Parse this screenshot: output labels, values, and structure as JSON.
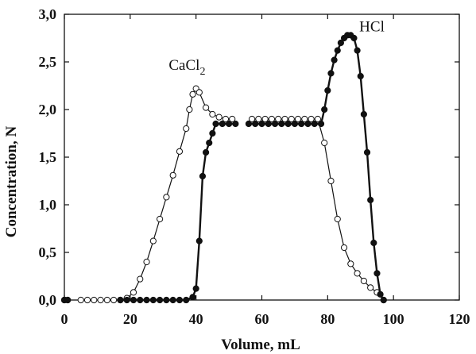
{
  "chart_data": {
    "type": "scatter",
    "xlabel": "Volume, mL",
    "ylabel": "Concentration, N",
    "xlim": [
      0,
      120
    ],
    "ylim": [
      0,
      3.0
    ],
    "x_ticks": [
      "0",
      "20",
      "40",
      "60",
      "80",
      "100",
      "120"
    ],
    "y_ticks": [
      "0,0",
      "0,5",
      "1,0",
      "1,5",
      "2,0",
      "2,5",
      "3,0"
    ],
    "grid": false,
    "annotations": [
      {
        "text_main": "CaCl",
        "text_sub": "2",
        "x": 38,
        "y": 2.4
      },
      {
        "text_main": "HCl",
        "x": 93,
        "y": 2.82
      }
    ],
    "series": [
      {
        "marker": "open-circle",
        "x": [
          0,
          1,
          5,
          7,
          9,
          11,
          13,
          15,
          17,
          19,
          21,
          23,
          25,
          27,
          29,
          31,
          33,
          35,
          37,
          38,
          39,
          40,
          41,
          43,
          45,
          47,
          49,
          51,
          57,
          59,
          61,
          63,
          65,
          67,
          69,
          71,
          73,
          75,
          77,
          79,
          81,
          83,
          85,
          87,
          89,
          91,
          93,
          95,
          97
        ],
        "y": [
          0,
          0,
          0,
          0,
          0,
          0,
          0,
          0,
          0,
          0.02,
          0.08,
          0.22,
          0.4,
          0.62,
          0.85,
          1.08,
          1.31,
          1.56,
          1.8,
          2.0,
          2.16,
          2.22,
          2.18,
          2.02,
          1.95,
          1.92,
          1.9,
          1.9,
          1.9,
          1.9,
          1.9,
          1.9,
          1.9,
          1.9,
          1.9,
          1.9,
          1.9,
          1.9,
          1.9,
          1.65,
          1.25,
          0.85,
          0.55,
          0.38,
          0.28,
          0.2,
          0.13,
          0.08,
          0.0
        ]
      },
      {
        "marker": "filled-circle",
        "x": [
          0,
          1,
          17,
          19,
          21,
          23,
          25,
          27,
          29,
          31,
          33,
          35,
          37,
          39,
          40,
          41,
          42,
          43,
          44,
          45,
          46,
          48,
          50,
          52,
          56,
          58,
          60,
          62,
          64,
          66,
          68,
          70,
          72,
          74,
          76,
          78,
          79,
          80,
          81,
          82,
          83,
          84,
          85,
          86,
          87,
          88,
          89,
          90,
          91,
          92,
          93,
          94,
          95,
          96,
          97
        ],
        "y": [
          0,
          0,
          0,
          0,
          0,
          0,
          0,
          0,
          0,
          0,
          0,
          0,
          0,
          0.03,
          0.12,
          0.62,
          1.3,
          1.55,
          1.65,
          1.75,
          1.85,
          1.85,
          1.85,
          1.85,
          1.85,
          1.85,
          1.85,
          1.85,
          1.85,
          1.85,
          1.85,
          1.85,
          1.85,
          1.85,
          1.85,
          1.85,
          2.0,
          2.2,
          2.38,
          2.52,
          2.62,
          2.7,
          2.75,
          2.78,
          2.78,
          2.75,
          2.62,
          2.35,
          1.95,
          1.55,
          1.05,
          0.6,
          0.28,
          0.06,
          0.0
        ]
      }
    ]
  }
}
